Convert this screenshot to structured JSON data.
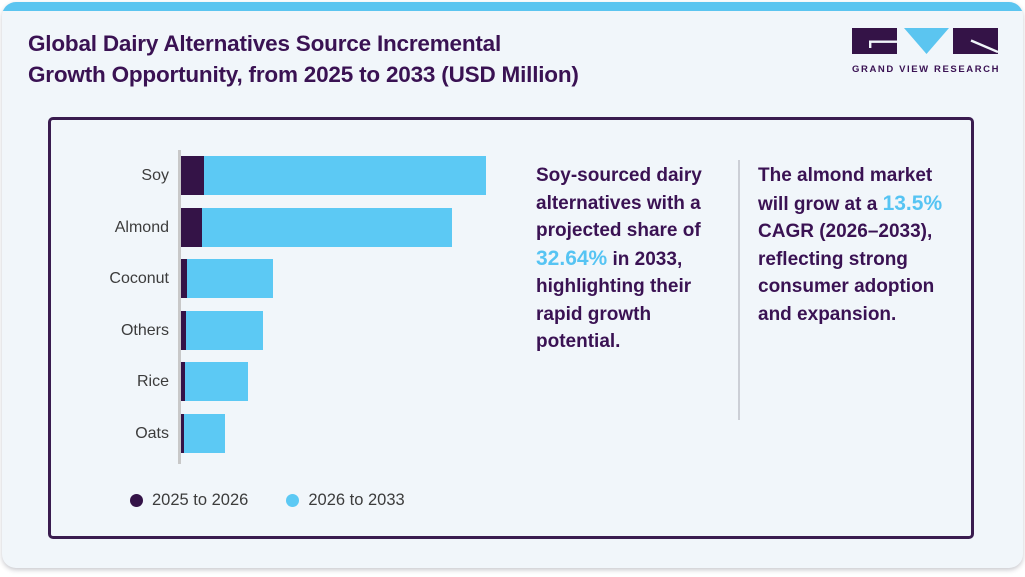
{
  "header": {
    "title_lines": [
      "Global Dairy Alternatives Source Incremental",
      "Growth Opportunity, from 2025 to 2033 (USD Million)"
    ],
    "brand": "GRAND VIEW RESEARCH"
  },
  "colors": {
    "accent_cyan_strip": "#5BC5F0",
    "bar_purple": "#341347",
    "bar_blue": "#5CC9F4",
    "text_purple": "#3A1253",
    "highlight_blue": "#56C4F3",
    "panel_border": "#3A1C4F",
    "card_background": "#F1F6FA",
    "label_gray": "#3C3C3C",
    "axis_gray": "#C8C8C8"
  },
  "chart_data": {
    "type": "bar",
    "orientation": "horizontal",
    "stacked": true,
    "title": "Global Dairy Alternatives Source Incremental Growth Opportunity, from 2025 to 2033 (USD Million)",
    "categories": [
      "Soy",
      "Almond",
      "Coconut",
      "Others",
      "Rice",
      "Oats"
    ],
    "series": [
      {
        "name": "2025 to 2026",
        "color": "#341347",
        "values": [
          23,
          21,
          6,
          5,
          4,
          3
        ]
      },
      {
        "name": "2026 to 2033",
        "color": "#5CC9F4",
        "values": [
          282,
          250,
          86,
          77,
          63,
          41
        ]
      }
    ],
    "units": "relative bar lengths; numeric value axis not labeled in figure",
    "value_axis_range": [
      0,
      310
    ],
    "grid": false,
    "legend_position": "bottom",
    "pixel_scale": 1
  },
  "insights": [
    {
      "pre": "Soy-sourced dairy alternatives with a projected share of ",
      "highlight": "32.64%",
      "post": " in 2033, highlighting their rapid growth potential."
    },
    {
      "pre": "The almond market will grow at a ",
      "highlight": "13.5%",
      "post": " CAGR (2026–2033), reflecting strong consumer adoption and expansion."
    }
  ]
}
